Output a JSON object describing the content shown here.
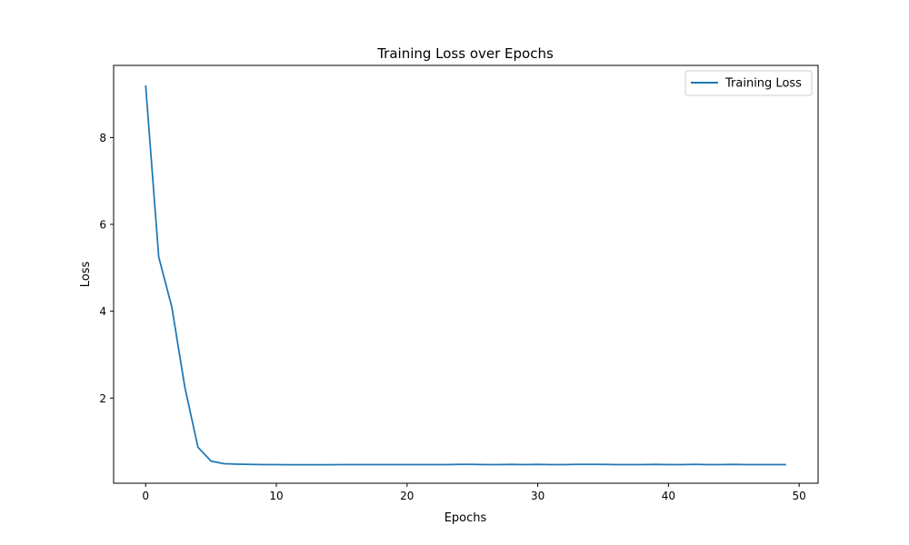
{
  "chart_data": {
    "type": "line",
    "title": "Training Loss over Epochs",
    "xlabel": "Epochs",
    "ylabel": "Loss",
    "xlim": [
      -2.45,
      51.45
    ],
    "ylim": [
      0.04,
      9.66
    ],
    "xticks": [
      0,
      10,
      20,
      30,
      40,
      50
    ],
    "yticks": [
      2,
      4,
      6,
      8
    ],
    "grid": false,
    "legend_position": "top-right",
    "series": [
      {
        "name": "Training Loss",
        "color": "#1f77b4",
        "x": [
          0,
          1,
          2,
          3,
          4,
          5,
          6,
          7,
          8,
          9,
          10,
          11,
          12,
          13,
          14,
          15,
          16,
          17,
          18,
          19,
          20,
          21,
          22,
          23,
          24,
          25,
          26,
          27,
          28,
          29,
          30,
          31,
          32,
          33,
          34,
          35,
          36,
          37,
          38,
          39,
          40,
          41,
          42,
          43,
          44,
          45,
          46,
          47,
          48,
          49
        ],
        "y": [
          9.2,
          5.25,
          4.1,
          2.25,
          0.87,
          0.55,
          0.49,
          0.48,
          0.475,
          0.47,
          0.47,
          0.465,
          0.465,
          0.465,
          0.465,
          0.47,
          0.47,
          0.47,
          0.47,
          0.47,
          0.47,
          0.47,
          0.47,
          0.47,
          0.475,
          0.475,
          0.47,
          0.47,
          0.475,
          0.47,
          0.475,
          0.47,
          0.47,
          0.475,
          0.475,
          0.475,
          0.47,
          0.47,
          0.47,
          0.475,
          0.47,
          0.47,
          0.475,
          0.47,
          0.47,
          0.475,
          0.47,
          0.47,
          0.47,
          0.47
        ]
      }
    ]
  }
}
